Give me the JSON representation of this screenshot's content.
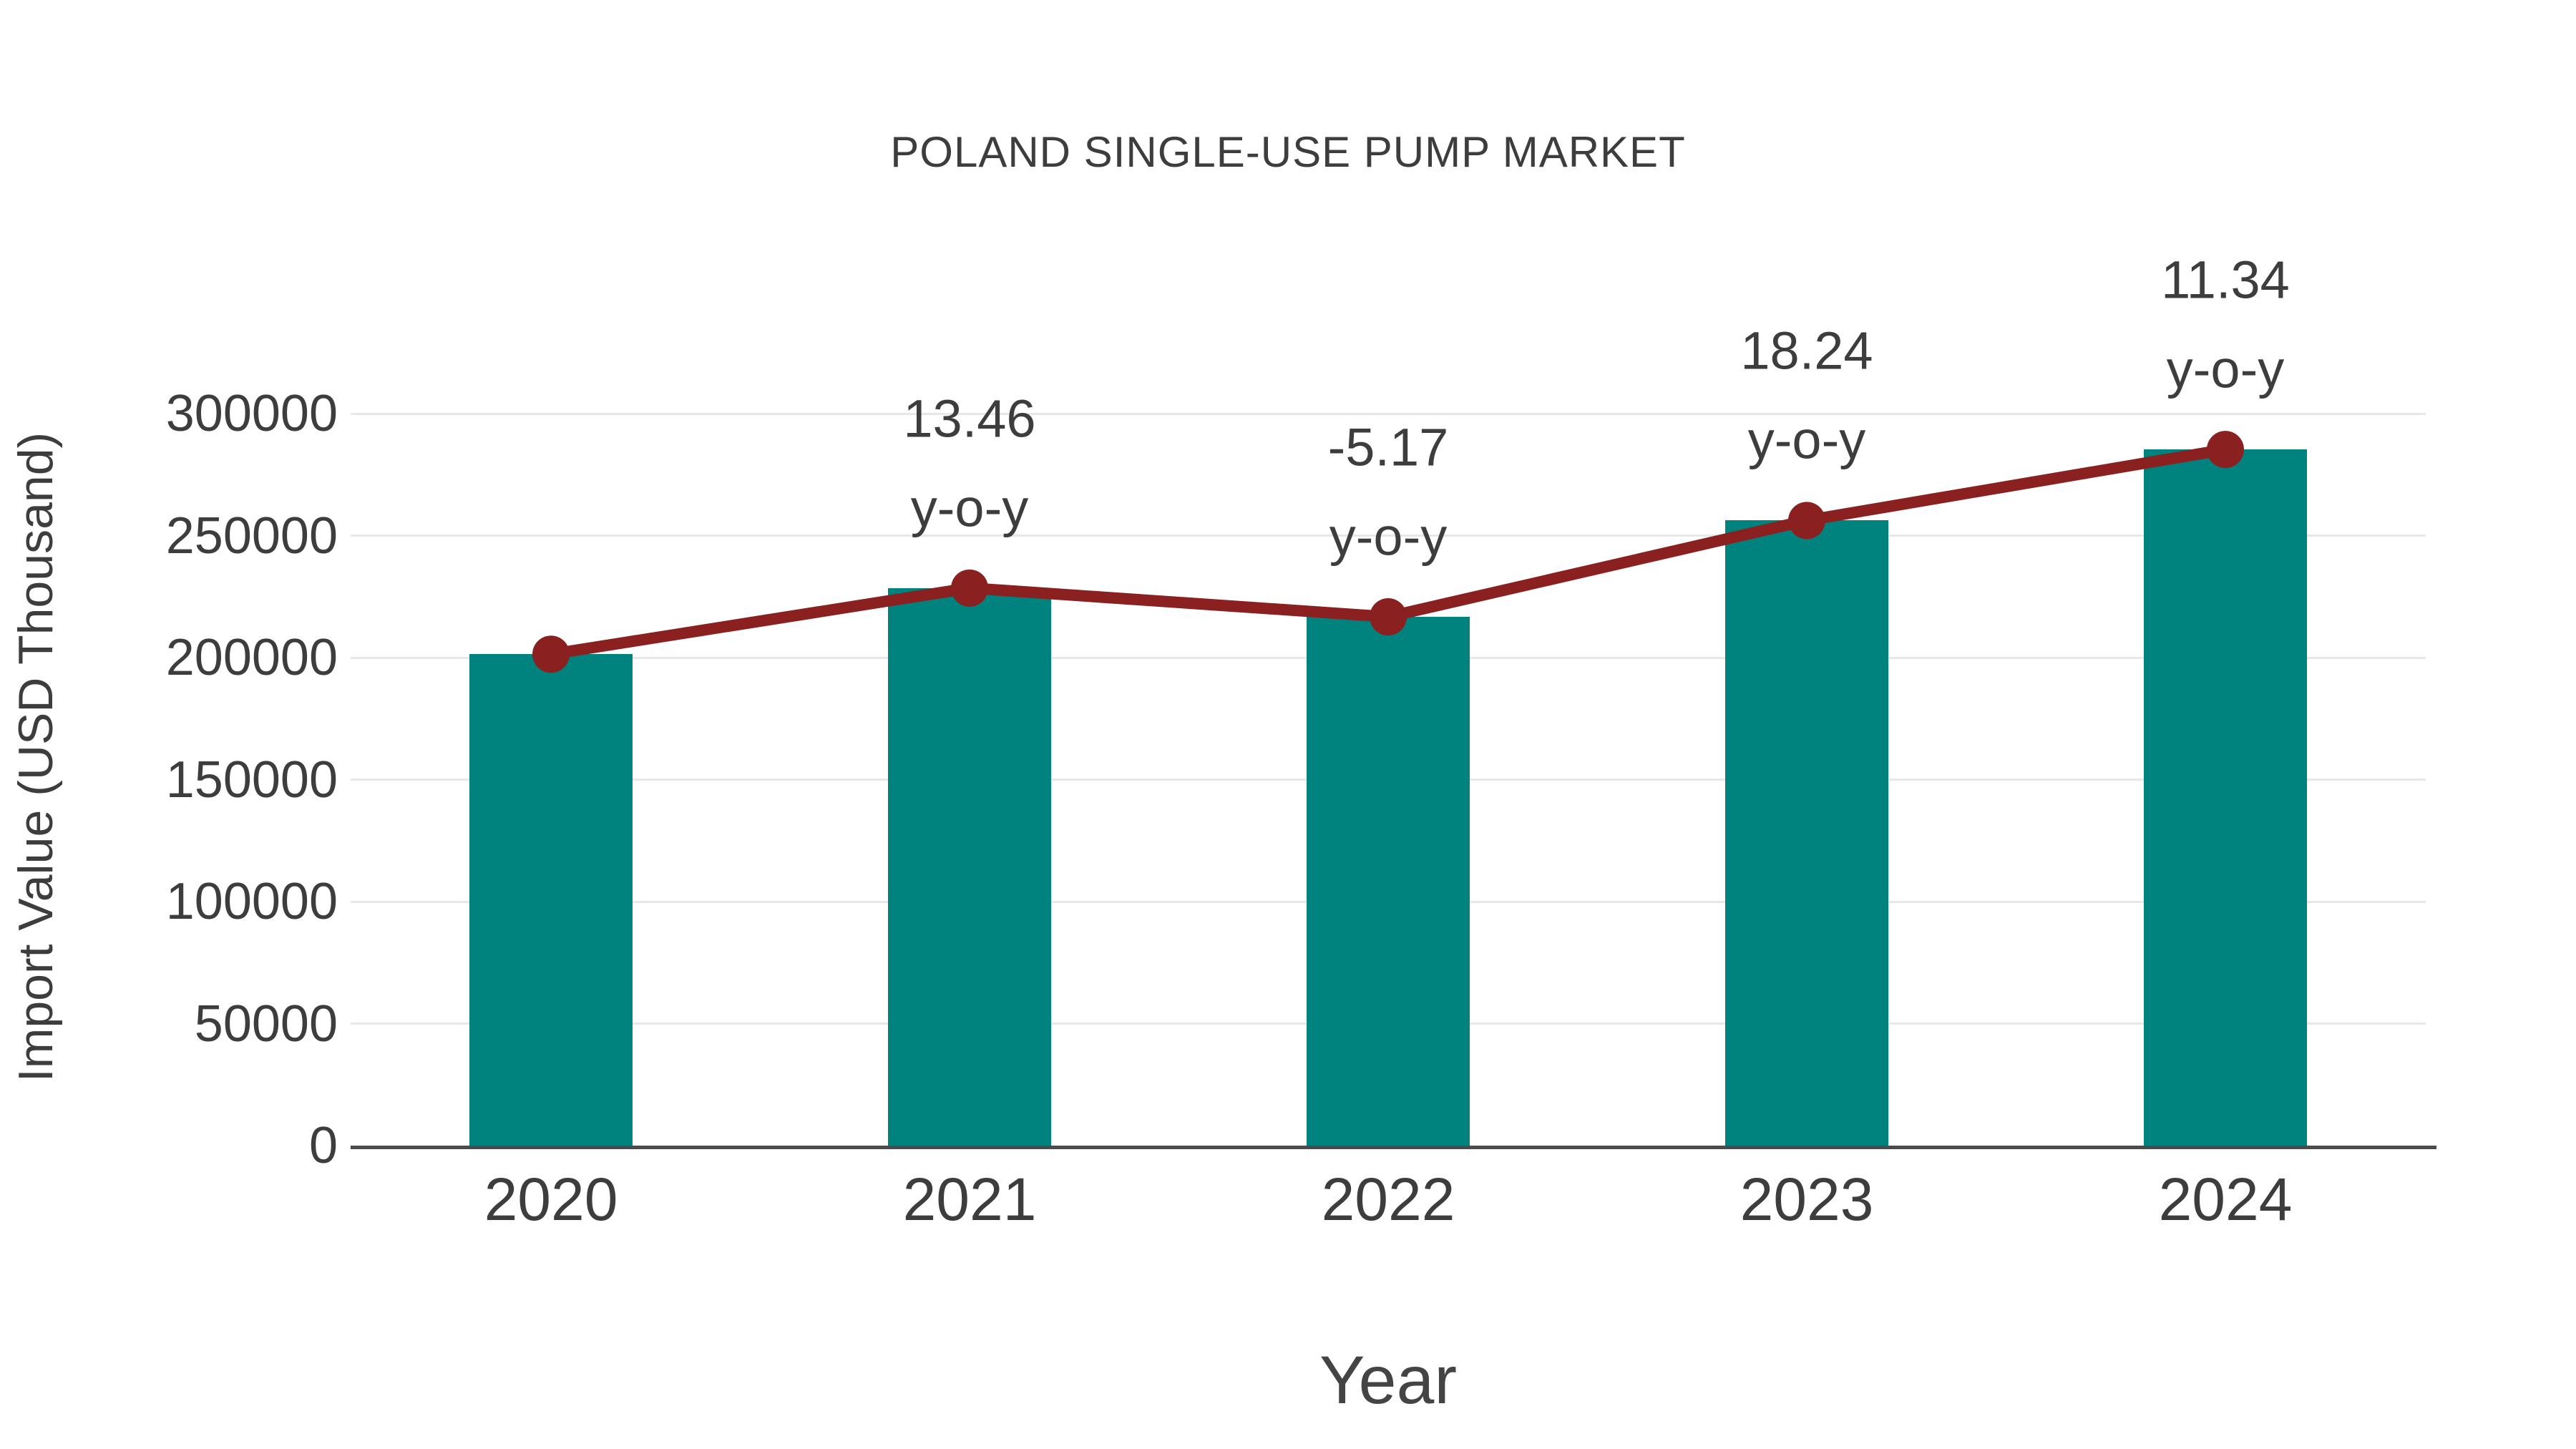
{
  "title": "POLAND SINGLE-USE PUMP MARKET",
  "chart_data": {
    "type": "bar",
    "subtype": "bar-with-line-overlay",
    "title": "POLAND SINGLE-USE PUMP MARKET",
    "xlabel": "Year",
    "ylabel": "Import Value (USD Thousand)",
    "categories": [
      "2020",
      "2021",
      "2022",
      "2023",
      "2024"
    ],
    "series": [
      {
        "name": "import-value-bars",
        "type": "bar",
        "values": [
          201400,
          228500,
          216700,
          256200,
          285300
        ],
        "color": "#00827E"
      },
      {
        "name": "import-value-trend-line",
        "type": "line",
        "values": [
          201400,
          228500,
          216700,
          256200,
          285300
        ],
        "color": "#8B2020"
      }
    ],
    "annotations": [
      {
        "category": "2021",
        "value": "13.46",
        "suffix": "y-o-y"
      },
      {
        "category": "2022",
        "value": "-5.17",
        "suffix": "y-o-y"
      },
      {
        "category": "2023",
        "value": "18.24",
        "suffix": "y-o-y"
      },
      {
        "category": "2024",
        "value": "11.34",
        "suffix": "y-o-y"
      }
    ],
    "ylim": [
      0,
      300000
    ],
    "ytick_step": 50000,
    "yticks": [
      "0",
      "50000",
      "100000",
      "150000",
      "200000",
      "250000",
      "300000"
    ],
    "grid": true,
    "legend_position": "none"
  },
  "colors": {
    "bar": "#00827E",
    "line": "#8B2020",
    "text": "#3d3d3d",
    "grid": "#e8e8e8",
    "axis": "#4b4b4b",
    "background": "#ffffff"
  }
}
